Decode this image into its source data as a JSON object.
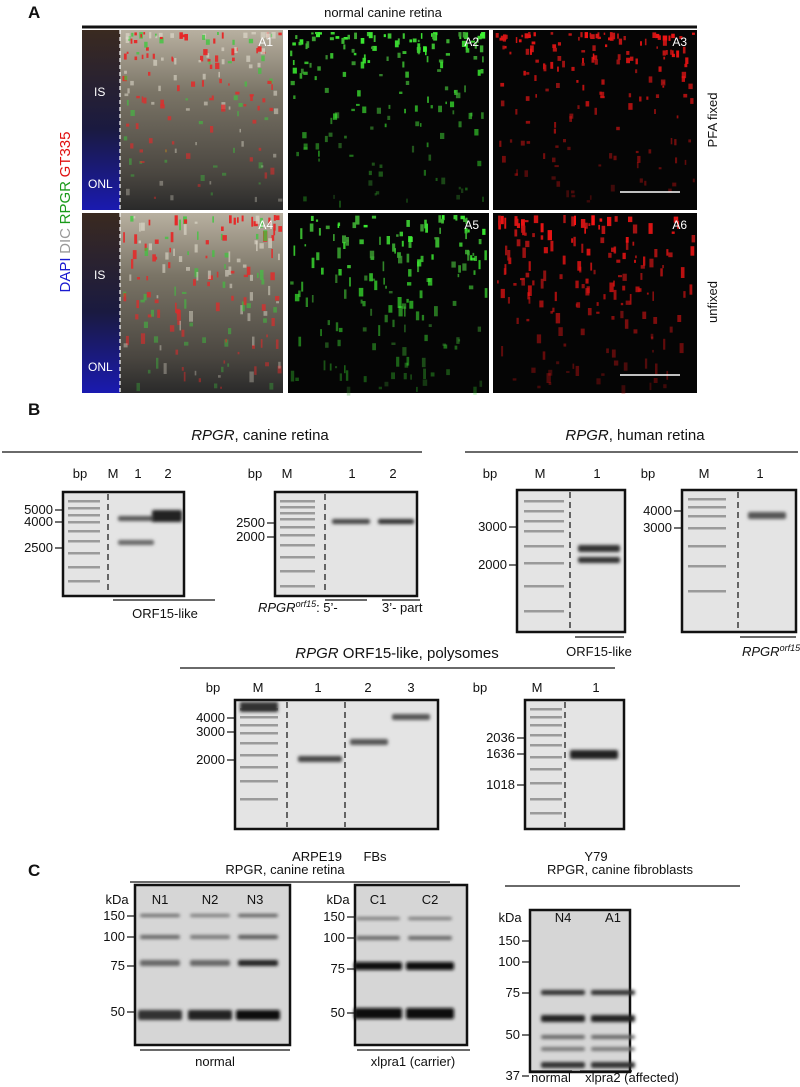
{
  "panel_a": {
    "label": "A",
    "title": "normal canine retina",
    "stain_labels": [
      "DAPI",
      "DIC",
      "RPGR",
      "GT335"
    ],
    "image_labels": [
      "A1",
      "A2",
      "A3",
      "A4",
      "A5",
      "A6"
    ],
    "layer_labels": [
      "IS",
      "ONL",
      "IS",
      "ONL"
    ],
    "row_labels": [
      "PFA fixed",
      "unfixed"
    ]
  },
  "panel_b": {
    "label": "B",
    "canine": {
      "title_gene": "RPGR",
      "title_rest": ", canine retina",
      "gel1": {
        "unit": "bp",
        "lanes": [
          "M",
          "1",
          "2"
        ],
        "markers": [
          "5000",
          "4000",
          "2500"
        ],
        "caption": "ORF15-like"
      },
      "gel2": {
        "unit": "bp",
        "lanes": [
          "M",
          "1",
          "2"
        ],
        "markers": [
          "2500",
          "2000"
        ],
        "caption_gene": "RPGR",
        "caption_sup": "orf15",
        "caption_5": ": 5’-",
        "caption_3": "3’- part"
      }
    },
    "human": {
      "title_gene": "RPGR",
      "title_rest": ", human retina",
      "gel1": {
        "unit": "bp",
        "lanes": [
          "M",
          "1"
        ],
        "markers": [
          "3000",
          "2000"
        ],
        "caption": "ORF15-like"
      },
      "gel2": {
        "unit": "bp",
        "lanes": [
          "M",
          "1"
        ],
        "markers": [
          "4000",
          "3000"
        ],
        "caption_gene": "RPGR",
        "caption_sup": "orf15",
        "caption_rest": ":"
      }
    },
    "polysomes": {
      "title_gene": "RPGR",
      "title_rest": " ORF15-like, polysomes",
      "gel1": {
        "unit": "bp",
        "lanes": [
          "M",
          "1",
          "2",
          "3"
        ],
        "markers": [
          "4000",
          "3000",
          "2000"
        ],
        "captions": [
          "ARPE19",
          "FBs"
        ]
      },
      "gel2": {
        "unit": "bp",
        "lanes": [
          "M",
          "1"
        ],
        "markers": [
          "2036",
          "1636",
          "1018"
        ],
        "caption": "Y79"
      }
    }
  },
  "panel_c": {
    "label": "C",
    "retina": {
      "title": "RPGR, canine retina",
      "blot1": {
        "unit": "kDa",
        "lanes": [
          "N1",
          "N2",
          "N3"
        ],
        "markers": [
          "150",
          "100",
          "75",
          "50"
        ],
        "caption": "normal"
      },
      "blot2": {
        "unit": "kDa",
        "lanes": [
          "C1",
          "C2"
        ],
        "markers": [
          "150",
          "100",
          "75",
          "50"
        ],
        "caption": "xlpra1 (carrier)"
      }
    },
    "fibroblasts": {
      "title": "RPGR, canine fibroblasts",
      "blot": {
        "unit": "kDa",
        "lanes": [
          "N4",
          "A1"
        ],
        "markers": [
          "150",
          "100",
          "75",
          "50",
          "37"
        ],
        "captions": [
          "normal",
          "xlpra2 (affected)"
        ]
      }
    }
  }
}
